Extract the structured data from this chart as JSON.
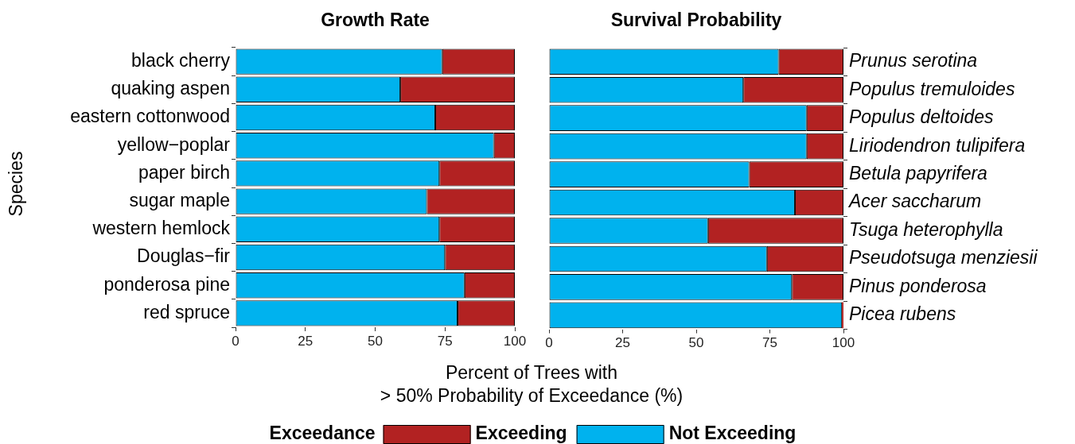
{
  "chart_data": [
    {
      "type": "bar",
      "title": "Growth Rate",
      "orientation": "horizontal",
      "stacked": true,
      "xlabel": "Percent of Trees with\n> 50% Probability of Exceedance (%)",
      "ylabel": "Species",
      "legend": "bottom",
      "legend_title": "Exceedance",
      "categories": [
        "black cherry",
        "quaking aspen",
        "eastern cottonwood",
        "yellow−poplar",
        "paper birch",
        "sugar maple",
        "western hemlock",
        "Douglas−fir",
        "ponderosa pine",
        "red spruce"
      ],
      "series": [
        {
          "name": "Not Exceeding",
          "color": "#00b2ee",
          "values": [
            74,
            59,
            71.5,
            92.5,
            73,
            68.5,
            73,
            75,
            82,
            79.5
          ]
        },
        {
          "name": "Exceeding",
          "color": "#b22222",
          "values": [
            26,
            41,
            28.5,
            7.5,
            27,
            31.5,
            27,
            25,
            18,
            20.5
          ]
        }
      ],
      "xlim": [
        0,
        100
      ],
      "xticks": [
        0,
        25,
        50,
        75,
        100
      ]
    },
    {
      "type": "bar",
      "title": "Survival Probability",
      "orientation": "horizontal",
      "stacked": true,
      "categories": [
        "Prunus serotina",
        "Populus tremuloides",
        "Populus deltoides",
        "Liriodendron tulipifera",
        "Betula papyrifera",
        "Acer saccharum",
        "Tsuga heterophylla",
        "Pseudotsuga menziesii",
        "Pinus ponderosa",
        "Picea rubens"
      ],
      "series": [
        {
          "color": "#00b2ee",
          "values": [
            78,
            66,
            87.5,
            87.5,
            68,
            83.5,
            54,
            74,
            82.5,
            99.5
          ]
        },
        {
          "color": "#b22222",
          "values": [
            22,
            34,
            12.5,
            12.5,
            32,
            16.5,
            46,
            26,
            17.5,
            0.5
          ]
        }
      ],
      "xlim": [
        0,
        100
      ],
      "xticks": [
        0,
        25,
        50,
        75,
        100
      ]
    }
  ]
}
